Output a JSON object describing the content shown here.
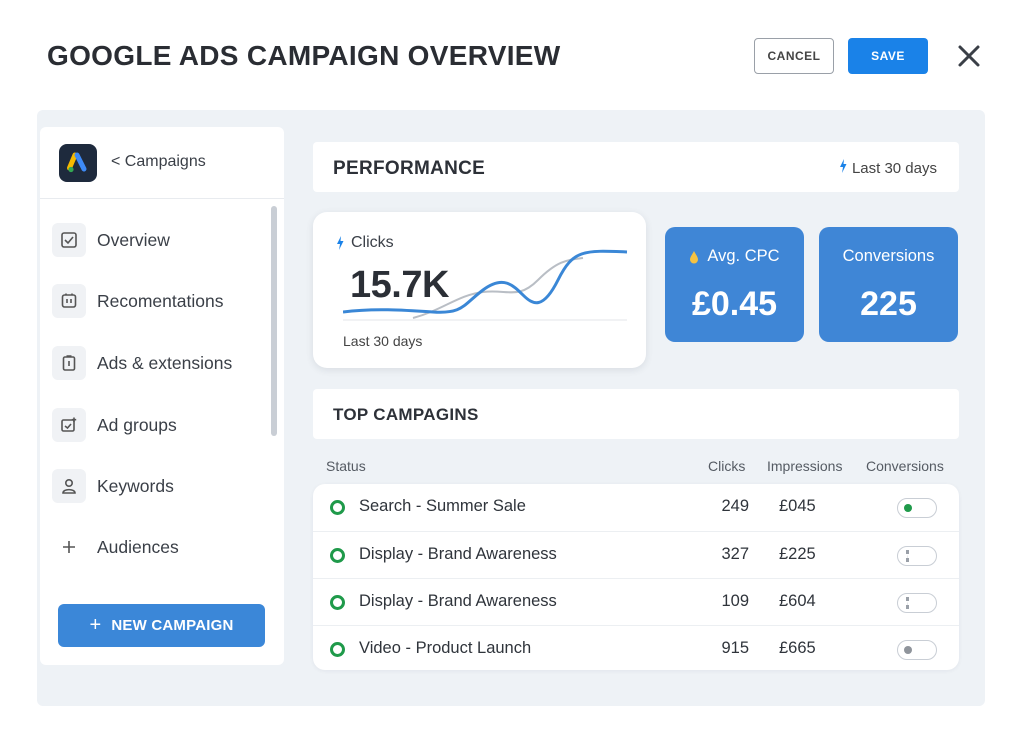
{
  "header": {
    "title": "GOOGLE ADS CAMPAIGN OVERVIEW",
    "cancel_label": "CANCEL",
    "save_label": "SAVE",
    "close_icon": "close-icon"
  },
  "sidebar": {
    "logo_icon": "google-ads-logo",
    "back_label": "< Campaigns",
    "items": [
      {
        "label": "Overview",
        "icon": "checkbox-icon"
      },
      {
        "label": "Recomentations",
        "icon": "lightbulb-icon"
      },
      {
        "label": "Ads & extensions",
        "icon": "clipboard-icon"
      },
      {
        "label": "Ad groups",
        "icon": "folder-add-icon"
      },
      {
        "label": "Keywords",
        "icon": "person-icon"
      },
      {
        "label": "Audiences",
        "icon": "plus-icon"
      }
    ],
    "new_campaign_label": "NEW CAMPAIGN"
  },
  "performance": {
    "title": "PERFORMANCE",
    "range_label": "Last 30 days",
    "clicks": {
      "label": "Clicks",
      "value": "15.7K",
      "sub_label": "Last 30 days"
    },
    "avg_cpc": {
      "label": "Avg. CPC",
      "value": "£0.45"
    },
    "conversions": {
      "label": "Conversions",
      "value": "225"
    }
  },
  "top_campaigns": {
    "title": "TOP CAMPAGINS",
    "columns": {
      "status": "Status",
      "clicks": "Clicks",
      "impressions": "Impressions",
      "conversions": "Conversions"
    },
    "rows": [
      {
        "name": "Search - Summer Sale",
        "clicks": "249",
        "impressions": "£045",
        "toggle": "on"
      },
      {
        "name": "Display - Brand Awareness",
        "clicks": "327",
        "impressions": "£225",
        "toggle": "off"
      },
      {
        "name": "Display - Brand Awareness",
        "clicks": "109",
        "impressions": "£604",
        "toggle": "off"
      },
      {
        "name": "Video - Product Launch",
        "clicks": "915",
        "impressions": "£665",
        "toggle": "off-dark"
      }
    ]
  },
  "colors": {
    "primary": "#1a82e8",
    "card_blue": "#3f86d6",
    "status_green": "#1f9a4a",
    "toggle_on": "#1f9a4a"
  }
}
